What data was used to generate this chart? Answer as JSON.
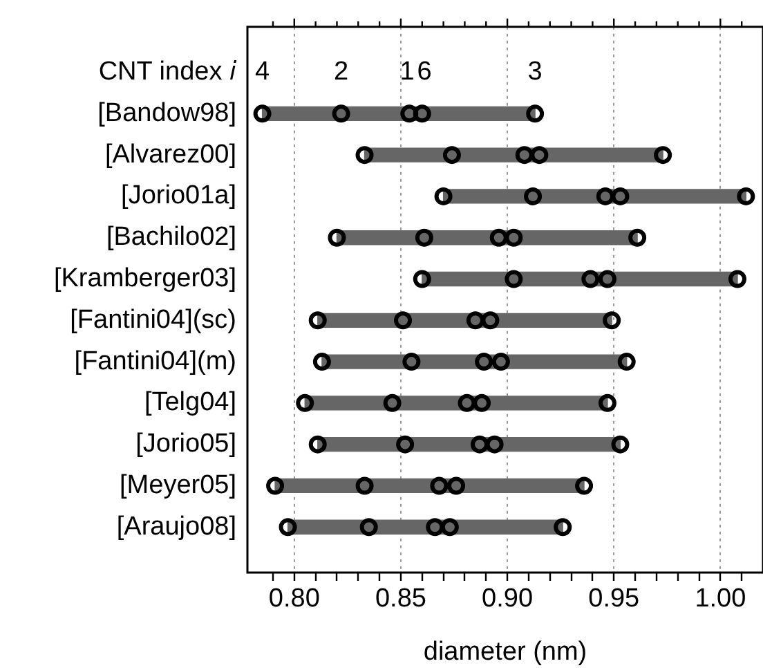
{
  "chart_data": {
    "type": "bar",
    "orientation": "horizontal",
    "xlabel": "diameter (nm)",
    "categories": [
      "[Bandow98]",
      "[Alvarez00]",
      "[Jorio01a]",
      "[Bachilo02]",
      "[Kramberger03]",
      "[Fantini04](sc)",
      "[Fantini04](m)",
      "[Telg04]",
      "[Jorio05]",
      "[Meyer05]",
      "[Araujo08]"
    ],
    "series": [
      {
        "type": "bar",
        "color": "#666666",
        "base": [
          0.785,
          0.833,
          0.87,
          0.82,
          0.86,
          0.811,
          0.813,
          0.805,
          0.811,
          0.791,
          0.797
        ],
        "values": [
          0.128,
          0.14,
          0.142,
          0.141,
          0.148,
          0.138,
          0.143,
          0.142,
          0.142,
          0.145,
          0.129
        ]
      },
      {
        "type": "scatter",
        "name": "4",
        "color": "#000000",
        "values": [
          0.785,
          0.833,
          0.87,
          0.82,
          0.86,
          0.811,
          0.813,
          0.805,
          0.811,
          0.791,
          0.797
        ]
      },
      {
        "type": "scatter",
        "name": "2",
        "color": "#000000",
        "values": [
          0.822,
          0.874,
          0.912,
          0.861,
          0.903,
          0.851,
          0.855,
          0.846,
          0.852,
          0.833,
          0.835
        ]
      },
      {
        "type": "scatter",
        "name": "1",
        "color": "#000000",
        "values": [
          0.854,
          0.908,
          0.946,
          0.896,
          0.939,
          0.885,
          0.889,
          0.881,
          0.887,
          0.868,
          0.866
        ]
      },
      {
        "type": "scatter",
        "name": "6",
        "color": "#000000",
        "values": [
          0.86,
          0.915,
          0.953,
          0.903,
          0.947,
          0.892,
          0.897,
          0.888,
          0.894,
          0.876,
          0.873
        ]
      },
      {
        "type": "scatter",
        "name": "3",
        "color": "#000000",
        "values": [
          0.913,
          0.973,
          1.012,
          0.961,
          1.008,
          0.949,
          0.956,
          0.947,
          0.953,
          0.936,
          0.926
        ]
      }
    ],
    "marker": "circle",
    "grid": "x",
    "xlim": [
      0.778,
      1.02
    ],
    "xticks": [
      {
        "value": 0.79,
        "label": null
      },
      {
        "value": 0.8,
        "label": "0.80"
      },
      {
        "value": 0.81,
        "label": null
      },
      {
        "value": 0.82,
        "label": null
      },
      {
        "value": 0.83,
        "label": null
      },
      {
        "value": 0.84,
        "label": null
      },
      {
        "value": 0.85,
        "label": "0.85"
      },
      {
        "value": 0.86,
        "label": null
      },
      {
        "value": 0.87,
        "label": null
      },
      {
        "value": 0.88,
        "label": null
      },
      {
        "value": 0.89,
        "label": null
      },
      {
        "value": 0.9,
        "label": "0.90"
      },
      {
        "value": 0.91,
        "label": null
      },
      {
        "value": 0.92,
        "label": null
      },
      {
        "value": 0.93,
        "label": null
      },
      {
        "value": 0.94,
        "label": null
      },
      {
        "value": 0.95,
        "label": "0.95"
      },
      {
        "value": 0.96,
        "label": null
      },
      {
        "value": 0.97,
        "label": null
      },
      {
        "value": 0.98,
        "label": null
      },
      {
        "value": 0.99,
        "label": null
      },
      {
        "value": 1.0,
        "label": "1.00"
      },
      {
        "value": 1.01,
        "label": null
      }
    ],
    "legend": "top",
    "legend_title": "CNT index 𝑖"
  }
}
